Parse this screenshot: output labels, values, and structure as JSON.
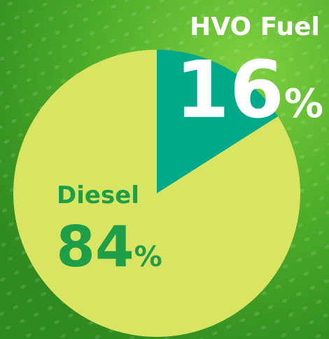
{
  "chart_data": {
    "type": "pie",
    "categories": [
      "HVO Fuel",
      "Diesel"
    ],
    "values": [
      16,
      84
    ],
    "value_labels": [
      "16%",
      "84%"
    ],
    "colors": [
      "#00a98a",
      "#d9e463"
    ]
  }
}
